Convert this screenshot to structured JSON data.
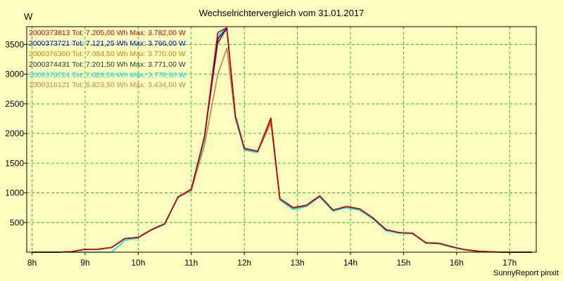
{
  "title": "Wechselrichtervergleich vom 31.01.2017",
  "footer": "SunnyReport pinxit",
  "chart_data": {
    "type": "line",
    "title": "Wechselrichtervergleich vom 31.01.2017",
    "ylabel": "W",
    "xlabel": "",
    "x_ticks": [
      "8h",
      "9h",
      "10h",
      "11h",
      "12h",
      "13h",
      "14h",
      "15h",
      "16h",
      "17h"
    ],
    "y_ticks": [
      500,
      1000,
      1500,
      2000,
      2500,
      3000,
      3500
    ],
    "xlim": [
      7.9,
      17.5
    ],
    "ylim": [
      0,
      3800
    ],
    "grid": true,
    "legend_position": "top-left",
    "x": [
      8.0,
      8.25,
      8.5,
      8.75,
      9.0,
      9.25,
      9.5,
      9.75,
      10.0,
      10.25,
      10.5,
      10.75,
      11.0,
      11.25,
      11.5,
      11.67,
      11.83,
      12.0,
      12.25,
      12.5,
      12.67,
      12.92,
      13.17,
      13.42,
      13.67,
      13.92,
      14.17,
      14.42,
      14.67,
      14.92,
      15.17,
      15.42,
      15.67,
      15.92,
      16.17,
      16.42,
      16.67,
      16.92,
      17.17,
      17.42
    ],
    "series": [
      {
        "name": "2000373813",
        "label": "2000373813 Tot: 7.205,00 Wh Max: 3.782,00 W",
        "color": "#d00000",
        "values": [
          0,
          0,
          0,
          10,
          50,
          50,
          80,
          230,
          250,
          380,
          480,
          930,
          1060,
          1950,
          3700,
          3782,
          2300,
          1750,
          1700,
          2250,
          900,
          750,
          790,
          950,
          710,
          770,
          730,
          580,
          380,
          330,
          320,
          160,
          150,
          90,
          40,
          15,
          5,
          0,
          0,
          0
        ]
      },
      {
        "name": "2000373721",
        "label": "2000373721 Tot: 7.121,25 Wh Max: 3.766,00 W",
        "color": "#0000c8",
        "values": [
          0,
          0,
          0,
          10,
          50,
          50,
          80,
          230,
          250,
          380,
          480,
          930,
          1060,
          1950,
          3600,
          3766,
          2300,
          1750,
          1700,
          2260,
          900,
          750,
          790,
          950,
          710,
          770,
          730,
          580,
          380,
          330,
          320,
          160,
          150,
          90,
          40,
          15,
          5,
          0,
          0,
          0
        ]
      },
      {
        "name": "2000376360",
        "label": "2000376360 Tot: 7.084,50 Wh Max: 3.770,00 W",
        "color": "#d08000",
        "values": [
          0,
          0,
          0,
          10,
          50,
          50,
          80,
          230,
          250,
          380,
          480,
          930,
          1060,
          1950,
          3550,
          3770,
          2300,
          1750,
          1700,
          2220,
          900,
          750,
          790,
          950,
          710,
          770,
          730,
          580,
          380,
          330,
          320,
          160,
          150,
          90,
          40,
          15,
          5,
          0,
          0,
          0
        ]
      },
      {
        "name": "2000374431",
        "label": "2000374431 Tot: 7.201,50 Wh Max: 3.771,00 W",
        "color": "#303030",
        "values": [
          0,
          0,
          0,
          10,
          50,
          50,
          80,
          230,
          250,
          380,
          480,
          930,
          1060,
          1950,
          3520,
          3771,
          2300,
          1750,
          1700,
          2230,
          900,
          750,
          790,
          950,
          710,
          770,
          730,
          580,
          380,
          330,
          320,
          160,
          150,
          90,
          40,
          15,
          5,
          0,
          0,
          0
        ]
      },
      {
        "name": "2000373724",
        "label": "2000373724 Tot: 7.020,50 Wh Max: 3.778,00 W",
        "color": "#00e0f0",
        "values": [
          0,
          0,
          0,
          0,
          0,
          0,
          0,
          200,
          240,
          370,
          470,
          920,
          1050,
          1900,
          3650,
          3778,
          2250,
          1720,
          1680,
          2250,
          880,
          720,
          770,
          930,
          690,
          750,
          710,
          560,
          360,
          320,
          310,
          150,
          140,
          80,
          35,
          10,
          3,
          0,
          0,
          0
        ]
      },
      {
        "name": "2000316121",
        "label": "2000316121 Tot: 6.823,50 Wh Max: 3.434,00 W",
        "color": "#c08040",
        "values": [
          0,
          0,
          0,
          10,
          50,
          50,
          80,
          230,
          250,
          380,
          480,
          920,
          1040,
          1800,
          3000,
          3434,
          2250,
          1730,
          1680,
          2180,
          890,
          740,
          780,
          940,
          700,
          760,
          720,
          570,
          370,
          320,
          310,
          150,
          140,
          80,
          35,
          10,
          3,
          0,
          0,
          0
        ]
      }
    ]
  }
}
